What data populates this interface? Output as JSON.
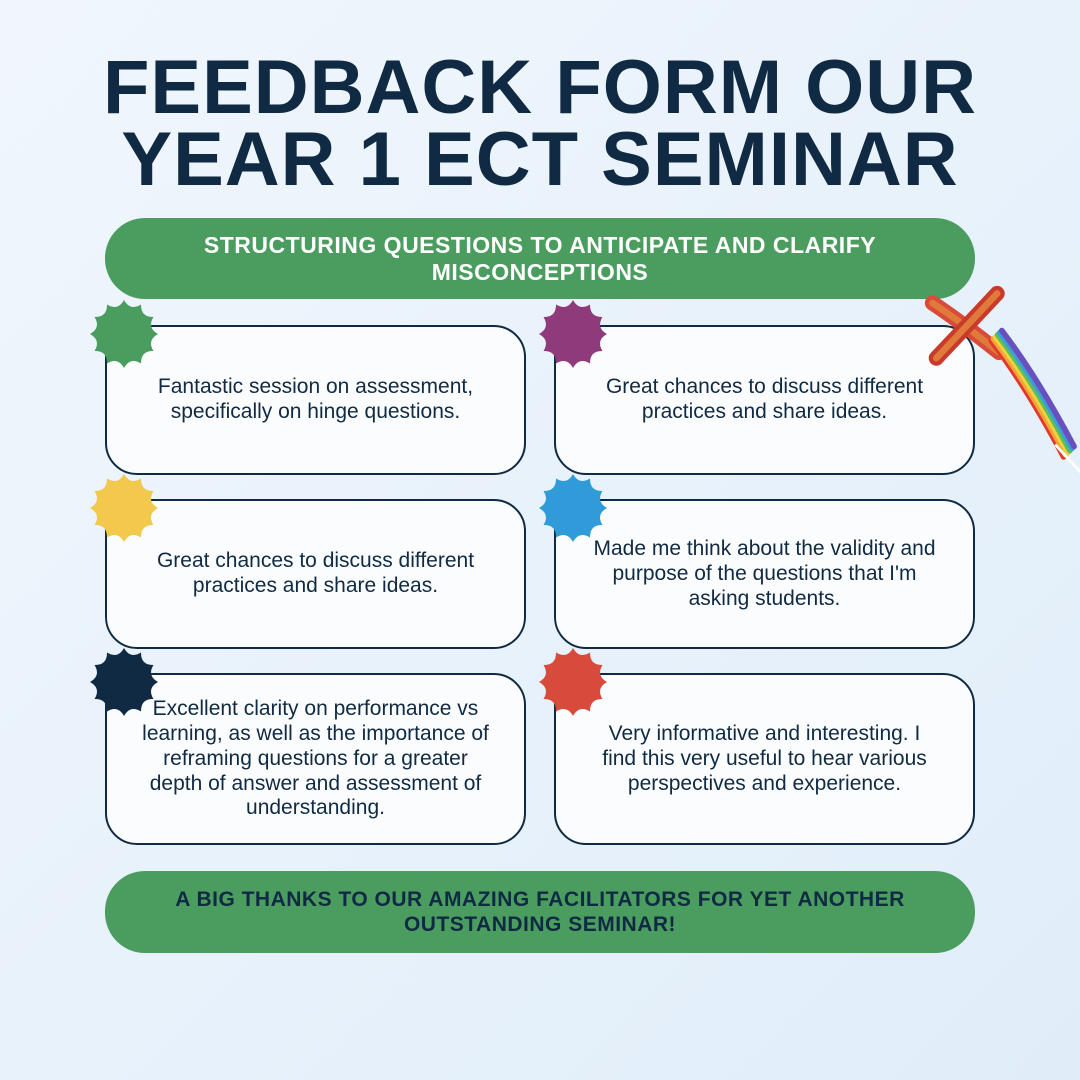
{
  "title": "FEEDBACK FORM OUR YEAR 1 ECT SEMINAR",
  "subtitle": "STRUCTURING QUESTIONS TO ANTICIPATE AND CLARIFY MISCONCEPTIONS",
  "footer": "A BIG THANKS TO OUR AMAZING FACILITATORS FOR YET ANOTHER OUTSTANDING SEMINAR!",
  "colors": {
    "pill_bg": "#4a9d5f",
    "text_dark": "#102a43",
    "card_bg": "#fbfcfd",
    "card_border": "#102a43"
  },
  "cards": [
    {
      "text": "Fantastic session on assessment, specifically on hinge questions.",
      "burst_color": "#4a9d5f"
    },
    {
      "text": "Great chances to discuss different practices and share ideas.",
      "burst_color": "#8e3a7b"
    },
    {
      "text": "Great chances to discuss different practices and share ideas.",
      "burst_color": "#f2c94c"
    },
    {
      "text": "Made me think about the validity and purpose of the questions that I'm asking students.",
      "burst_color": "#2f9bd8"
    },
    {
      "text": "Excellent clarity on performance vs learning, as well as the importance of reframing questions for a greater depth of answer and assessment of understanding.",
      "burst_color": "#102a43"
    },
    {
      "text": "Very informative and interesting. I find this very useful to hear various perspectives and experience.",
      "burst_color": "#d84a3a"
    }
  ],
  "brush": {
    "stroke_colors": [
      "#e03a2a",
      "#f2a33a",
      "#f2d23a",
      "#5bbf5b",
      "#3a9fd8",
      "#6a4fbf"
    ]
  }
}
